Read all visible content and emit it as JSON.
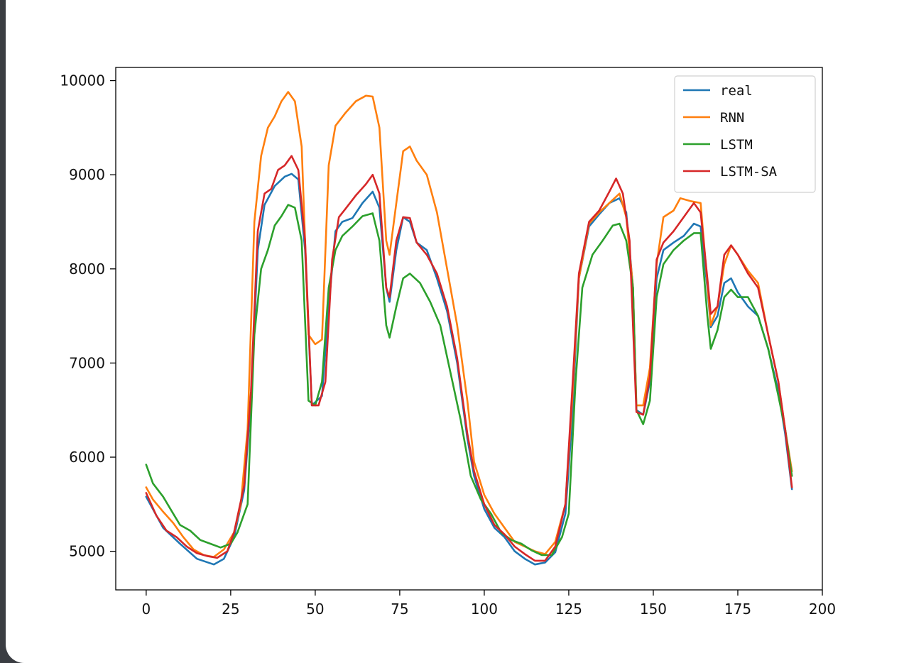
{
  "chart_data": {
    "type": "line",
    "title": "",
    "xlabel": "",
    "ylabel": "",
    "xlim": [
      -9,
      200
    ],
    "ylim": [
      4590,
      10140
    ],
    "x_ticks": [
      0,
      25,
      50,
      75,
      100,
      125,
      150,
      175,
      200
    ],
    "y_ticks": [
      5000,
      6000,
      7000,
      8000,
      9000,
      10000
    ],
    "grid": false,
    "legend_position": "top-right",
    "series": [
      {
        "name": "real",
        "color": "#1f77b4",
        "points": [
          [
            0,
            5580
          ],
          [
            5,
            5250
          ],
          [
            10,
            5080
          ],
          [
            15,
            4920
          ],
          [
            20,
            4860
          ],
          [
            23,
            4920
          ],
          [
            26,
            5150
          ],
          [
            29,
            5650
          ],
          [
            31,
            6600
          ],
          [
            33,
            8200
          ],
          [
            35,
            8680
          ],
          [
            38,
            8880
          ],
          [
            41,
            8980
          ],
          [
            43,
            9010
          ],
          [
            45,
            8950
          ],
          [
            47,
            8200
          ],
          [
            49,
            6550
          ],
          [
            52,
            6650
          ],
          [
            54,
            7600
          ],
          [
            56,
            8400
          ],
          [
            58,
            8500
          ],
          [
            61,
            8540
          ],
          [
            64,
            8700
          ],
          [
            67,
            8820
          ],
          [
            69,
            8650
          ],
          [
            71,
            7800
          ],
          [
            72,
            7650
          ],
          [
            74,
            8200
          ],
          [
            76,
            8550
          ],
          [
            78,
            8500
          ],
          [
            80,
            8280
          ],
          [
            83,
            8200
          ],
          [
            86,
            7900
          ],
          [
            89,
            7550
          ],
          [
            92,
            7000
          ],
          [
            95,
            6200
          ],
          [
            97,
            5800
          ],
          [
            100,
            5450
          ],
          [
            103,
            5250
          ],
          [
            106,
            5150
          ],
          [
            109,
            5000
          ],
          [
            112,
            4920
          ],
          [
            115,
            4860
          ],
          [
            118,
            4880
          ],
          [
            121,
            4990
          ],
          [
            124,
            5400
          ],
          [
            126,
            6400
          ],
          [
            128,
            7900
          ],
          [
            131,
            8450
          ],
          [
            134,
            8580
          ],
          [
            137,
            8700
          ],
          [
            140,
            8750
          ],
          [
            142,
            8600
          ],
          [
            144,
            7800
          ],
          [
            145,
            6500
          ],
          [
            147,
            6450
          ],
          [
            149,
            6800
          ],
          [
            151,
            7900
          ],
          [
            153,
            8200
          ],
          [
            156,
            8280
          ],
          [
            159,
            8350
          ],
          [
            162,
            8480
          ],
          [
            164,
            8450
          ],
          [
            166,
            7800
          ],
          [
            167,
            7380
          ],
          [
            169,
            7500
          ],
          [
            171,
            7850
          ],
          [
            173,
            7900
          ],
          [
            175,
            7750
          ],
          [
            178,
            7600
          ],
          [
            181,
            7500
          ],
          [
            184,
            7150
          ],
          [
            187,
            6700
          ],
          [
            189,
            6250
          ],
          [
            191,
            5660
          ]
        ]
      },
      {
        "name": "RNN",
        "color": "#ff7f0e",
        "points": [
          [
            0,
            5680
          ],
          [
            2,
            5550
          ],
          [
            5,
            5420
          ],
          [
            8,
            5300
          ],
          [
            11,
            5150
          ],
          [
            14,
            5020
          ],
          [
            17,
            4960
          ],
          [
            20,
            4940
          ],
          [
            23,
            5020
          ],
          [
            26,
            5200
          ],
          [
            28,
            5500
          ],
          [
            30,
            6300
          ],
          [
            32,
            8500
          ],
          [
            34,
            9200
          ],
          [
            36,
            9500
          ],
          [
            38,
            9620
          ],
          [
            40,
            9780
          ],
          [
            42,
            9880
          ],
          [
            44,
            9780
          ],
          [
            46,
            9300
          ],
          [
            48,
            7300
          ],
          [
            50,
            7200
          ],
          [
            52,
            7250
          ],
          [
            54,
            9100
          ],
          [
            56,
            9520
          ],
          [
            59,
            9660
          ],
          [
            62,
            9780
          ],
          [
            65,
            9840
          ],
          [
            67,
            9830
          ],
          [
            69,
            9500
          ],
          [
            71,
            8300
          ],
          [
            72,
            8150
          ],
          [
            74,
            8700
          ],
          [
            76,
            9250
          ],
          [
            78,
            9300
          ],
          [
            80,
            9150
          ],
          [
            83,
            9000
          ],
          [
            86,
            8600
          ],
          [
            89,
            8000
          ],
          [
            92,
            7400
          ],
          [
            95,
            6600
          ],
          [
            97,
            5950
          ],
          [
            100,
            5600
          ],
          [
            103,
            5400
          ],
          [
            106,
            5250
          ],
          [
            109,
            5100
          ],
          [
            112,
            5050
          ],
          [
            115,
            5000
          ],
          [
            118,
            4970
          ],
          [
            121,
            5100
          ],
          [
            124,
            5500
          ],
          [
            126,
            6600
          ],
          [
            128,
            7900
          ],
          [
            131,
            8480
          ],
          [
            134,
            8600
          ],
          [
            137,
            8700
          ],
          [
            140,
            8800
          ],
          [
            142,
            8550
          ],
          [
            144,
            7800
          ],
          [
            145,
            6550
          ],
          [
            147,
            6550
          ],
          [
            149,
            6950
          ],
          [
            151,
            8050
          ],
          [
            153,
            8550
          ],
          [
            156,
            8620
          ],
          [
            158,
            8750
          ],
          [
            161,
            8720
          ],
          [
            164,
            8700
          ],
          [
            166,
            7850
          ],
          [
            167,
            7400
          ],
          [
            169,
            7600
          ],
          [
            171,
            8050
          ],
          [
            173,
            8250
          ],
          [
            175,
            8150
          ],
          [
            178,
            7980
          ],
          [
            181,
            7850
          ],
          [
            184,
            7300
          ],
          [
            187,
            6800
          ],
          [
            189,
            6300
          ],
          [
            191,
            5850
          ]
        ]
      },
      {
        "name": "LSTM",
        "color": "#2ca02c",
        "points": [
          [
            0,
            5920
          ],
          [
            2,
            5720
          ],
          [
            5,
            5580
          ],
          [
            8,
            5400
          ],
          [
            10,
            5280
          ],
          [
            13,
            5220
          ],
          [
            16,
            5120
          ],
          [
            19,
            5080
          ],
          [
            22,
            5040
          ],
          [
            25,
            5080
          ],
          [
            27,
            5200
          ],
          [
            30,
            5500
          ],
          [
            32,
            7300
          ],
          [
            34,
            8000
          ],
          [
            36,
            8200
          ],
          [
            38,
            8460
          ],
          [
            40,
            8560
          ],
          [
            42,
            8680
          ],
          [
            44,
            8650
          ],
          [
            46,
            8300
          ],
          [
            48,
            6600
          ],
          [
            50,
            6550
          ],
          [
            52,
            6800
          ],
          [
            54,
            7800
          ],
          [
            56,
            8200
          ],
          [
            58,
            8350
          ],
          [
            61,
            8450
          ],
          [
            64,
            8560
          ],
          [
            67,
            8590
          ],
          [
            69,
            8300
          ],
          [
            71,
            7400
          ],
          [
            72,
            7270
          ],
          [
            74,
            7600
          ],
          [
            76,
            7900
          ],
          [
            78,
            7950
          ],
          [
            81,
            7850
          ],
          [
            84,
            7650
          ],
          [
            87,
            7400
          ],
          [
            90,
            6900
          ],
          [
            93,
            6400
          ],
          [
            96,
            5800
          ],
          [
            99,
            5550
          ],
          [
            102,
            5400
          ],
          [
            105,
            5200
          ],
          [
            108,
            5120
          ],
          [
            111,
            5080
          ],
          [
            114,
            5010
          ],
          [
            117,
            4960
          ],
          [
            120,
            4960
          ],
          [
            123,
            5150
          ],
          [
            125,
            5400
          ],
          [
            127,
            6800
          ],
          [
            129,
            7800
          ],
          [
            132,
            8150
          ],
          [
            135,
            8300
          ],
          [
            138,
            8460
          ],
          [
            140,
            8480
          ],
          [
            142,
            8300
          ],
          [
            144,
            7800
          ],
          [
            145,
            6500
          ],
          [
            147,
            6350
          ],
          [
            149,
            6600
          ],
          [
            151,
            7700
          ],
          [
            153,
            8050
          ],
          [
            156,
            8200
          ],
          [
            159,
            8300
          ],
          [
            162,
            8380
          ],
          [
            164,
            8380
          ],
          [
            166,
            7500
          ],
          [
            167,
            7150
          ],
          [
            169,
            7350
          ],
          [
            171,
            7700
          ],
          [
            173,
            7780
          ],
          [
            175,
            7700
          ],
          [
            178,
            7700
          ],
          [
            181,
            7500
          ],
          [
            184,
            7150
          ],
          [
            187,
            6650
          ],
          [
            189,
            6300
          ],
          [
            191,
            5800
          ]
        ]
      },
      {
        "name": "LSTM-SA",
        "color": "#d62728",
        "points": [
          [
            0,
            5620
          ],
          [
            3,
            5380
          ],
          [
            6,
            5220
          ],
          [
            9,
            5150
          ],
          [
            12,
            5050
          ],
          [
            15,
            4980
          ],
          [
            18,
            4950
          ],
          [
            21,
            4930
          ],
          [
            24,
            5000
          ],
          [
            26,
            5200
          ],
          [
            29,
            5700
          ],
          [
            31,
            6700
          ],
          [
            33,
            8400
          ],
          [
            35,
            8800
          ],
          [
            37,
            8850
          ],
          [
            39,
            9050
          ],
          [
            41,
            9100
          ],
          [
            43,
            9200
          ],
          [
            45,
            9050
          ],
          [
            47,
            8300
          ],
          [
            49,
            6550
          ],
          [
            51,
            6550
          ],
          [
            53,
            6800
          ],
          [
            55,
            8100
          ],
          [
            57,
            8550
          ],
          [
            59,
            8640
          ],
          [
            62,
            8780
          ],
          [
            65,
            8900
          ],
          [
            67,
            9000
          ],
          [
            69,
            8800
          ],
          [
            71,
            7800
          ],
          [
            72,
            7700
          ],
          [
            74,
            8300
          ],
          [
            76,
            8550
          ],
          [
            78,
            8540
          ],
          [
            80,
            8280
          ],
          [
            83,
            8150
          ],
          [
            86,
            7950
          ],
          [
            89,
            7600
          ],
          [
            92,
            7050
          ],
          [
            95,
            6250
          ],
          [
            97,
            5850
          ],
          [
            100,
            5500
          ],
          [
            103,
            5280
          ],
          [
            106,
            5180
          ],
          [
            109,
            5050
          ],
          [
            112,
            4970
          ],
          [
            115,
            4900
          ],
          [
            118,
            4900
          ],
          [
            121,
            5050
          ],
          [
            124,
            5500
          ],
          [
            126,
            6700
          ],
          [
            128,
            7950
          ],
          [
            131,
            8500
          ],
          [
            134,
            8620
          ],
          [
            137,
            8820
          ],
          [
            139,
            8960
          ],
          [
            141,
            8800
          ],
          [
            143,
            8300
          ],
          [
            145,
            6480
          ],
          [
            147,
            6450
          ],
          [
            149,
            6850
          ],
          [
            151,
            8100
          ],
          [
            153,
            8280
          ],
          [
            156,
            8400
          ],
          [
            159,
            8550
          ],
          [
            162,
            8700
          ],
          [
            164,
            8600
          ],
          [
            166,
            7900
          ],
          [
            167,
            7520
          ],
          [
            169,
            7600
          ],
          [
            171,
            8150
          ],
          [
            173,
            8250
          ],
          [
            175,
            8150
          ],
          [
            178,
            7950
          ],
          [
            181,
            7800
          ],
          [
            184,
            7300
          ],
          [
            187,
            6800
          ],
          [
            189,
            6300
          ],
          [
            191,
            5680
          ]
        ]
      }
    ]
  }
}
